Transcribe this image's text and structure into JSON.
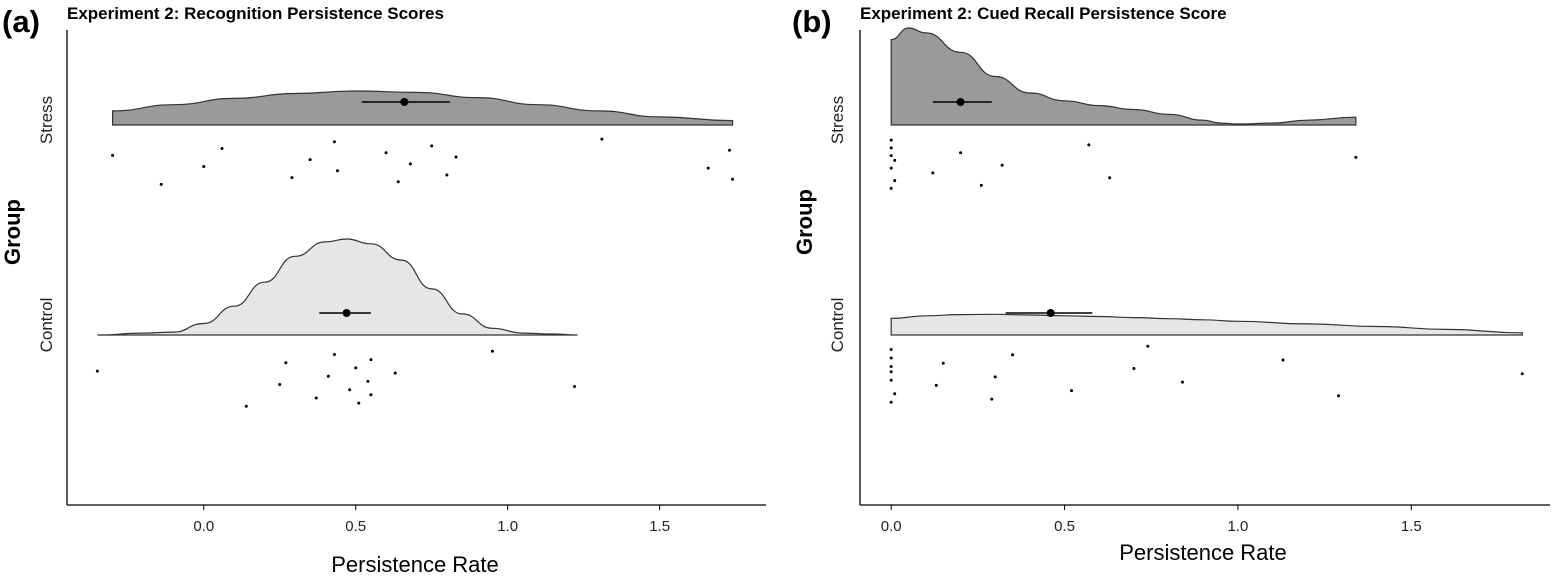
{
  "chart_data": [
    {
      "type": "raincloud",
      "panel_label": "(a)",
      "title": "Experiment 2: Recognition Persistence Scores",
      "xlabel": "Persistence Rate",
      "ylabel": "Group",
      "xlim": [
        -0.45,
        1.85
      ],
      "x_ticks": [
        0.0,
        0.5,
        1.0,
        1.5
      ],
      "x_tick_labels": [
        "0.0",
        "0.5",
        "1.0",
        "1.5"
      ],
      "categories": [
        "Stress",
        "Control"
      ],
      "grid": false,
      "series": [
        {
          "name": "Stress",
          "fill": "#9a9a9a",
          "mean": 0.66,
          "ci": [
            0.52,
            0.81
          ],
          "density_x": [
            -0.3,
            -0.1,
            0.1,
            0.3,
            0.5,
            0.7,
            0.9,
            1.1,
            1.3,
            1.5,
            1.74
          ],
          "density_y": [
            0.38,
            0.55,
            0.72,
            0.85,
            0.92,
            0.88,
            0.74,
            0.55,
            0.38,
            0.22,
            0.12
          ],
          "points": [
            -0.3,
            -0.14,
            0.0,
            0.06,
            0.29,
            0.35,
            0.43,
            0.44,
            0.6,
            0.64,
            0.68,
            0.75,
            0.8,
            0.83,
            1.31,
            1.66,
            1.73,
            1.74
          ]
        },
        {
          "name": "Control",
          "fill": "#e6e6e6",
          "mean": 0.47,
          "ci": [
            0.38,
            0.55
          ],
          "density_x": [
            -0.35,
            -0.2,
            -0.1,
            0.0,
            0.1,
            0.2,
            0.3,
            0.4,
            0.47,
            0.55,
            0.65,
            0.75,
            0.85,
            0.95,
            1.05,
            1.15,
            1.23
          ],
          "density_y": [
            0.0,
            0.02,
            0.03,
            0.12,
            0.3,
            0.55,
            0.82,
            0.97,
            1.0,
            0.95,
            0.78,
            0.48,
            0.22,
            0.07,
            0.02,
            0.01,
            0.0
          ],
          "points": [
            -0.35,
            0.14,
            0.25,
            0.27,
            0.37,
            0.41,
            0.43,
            0.48,
            0.5,
            0.51,
            0.54,
            0.55,
            0.55,
            0.63,
            0.95,
            1.22
          ]
        }
      ]
    },
    {
      "type": "raincloud",
      "panel_label": "(b)",
      "title": "Experiment 2: Cued Recall Persistence Score",
      "xlabel": "Persistence Rate",
      "ylabel": "Group",
      "xlim": [
        -0.09,
        1.9
      ],
      "x_ticks": [
        0.0,
        0.5,
        1.0,
        1.5
      ],
      "x_tick_labels": [
        "0.0",
        "0.5",
        "1.0",
        "1.5"
      ],
      "categories": [
        "Stress",
        "Control"
      ],
      "grid": false,
      "series": [
        {
          "name": "Stress",
          "fill": "#9a9a9a",
          "mean": 0.2,
          "ci": [
            0.12,
            0.29
          ],
          "density_x": [
            0.0,
            0.05,
            0.1,
            0.2,
            0.3,
            0.4,
            0.5,
            0.6,
            0.7,
            0.8,
            0.9,
            0.95,
            1.0,
            1.1,
            1.2,
            1.34
          ],
          "density_y": [
            0.88,
            1.0,
            0.95,
            0.75,
            0.5,
            0.33,
            0.25,
            0.2,
            0.16,
            0.11,
            0.05,
            0.02,
            0.01,
            0.02,
            0.05,
            0.08
          ],
          "points": [
            0.0,
            0.0,
            0.0,
            0.0,
            0.01,
            0.01,
            0.0,
            0.12,
            0.2,
            0.26,
            0.32,
            0.57,
            0.63,
            1.34
          ]
        },
        {
          "name": "Control",
          "fill": "#e6e6e6",
          "mean": 0.46,
          "ci": [
            0.33,
            0.58
          ],
          "density_x": [
            0.0,
            0.1,
            0.2,
            0.3,
            0.4,
            0.5,
            0.6,
            0.7,
            0.8,
            0.9,
            1.0,
            1.2,
            1.4,
            1.6,
            1.82
          ],
          "density_y": [
            0.45,
            0.52,
            0.55,
            0.56,
            0.54,
            0.52,
            0.5,
            0.47,
            0.44,
            0.41,
            0.37,
            0.3,
            0.23,
            0.15,
            0.06
          ],
          "points": [
            0.0,
            0.0,
            0.0,
            0.0,
            0.01,
            0.0,
            0.0,
            0.13,
            0.15,
            0.29,
            0.3,
            0.35,
            0.52,
            0.7,
            0.74,
            0.84,
            1.13,
            1.29,
            1.82
          ]
        }
      ]
    }
  ]
}
